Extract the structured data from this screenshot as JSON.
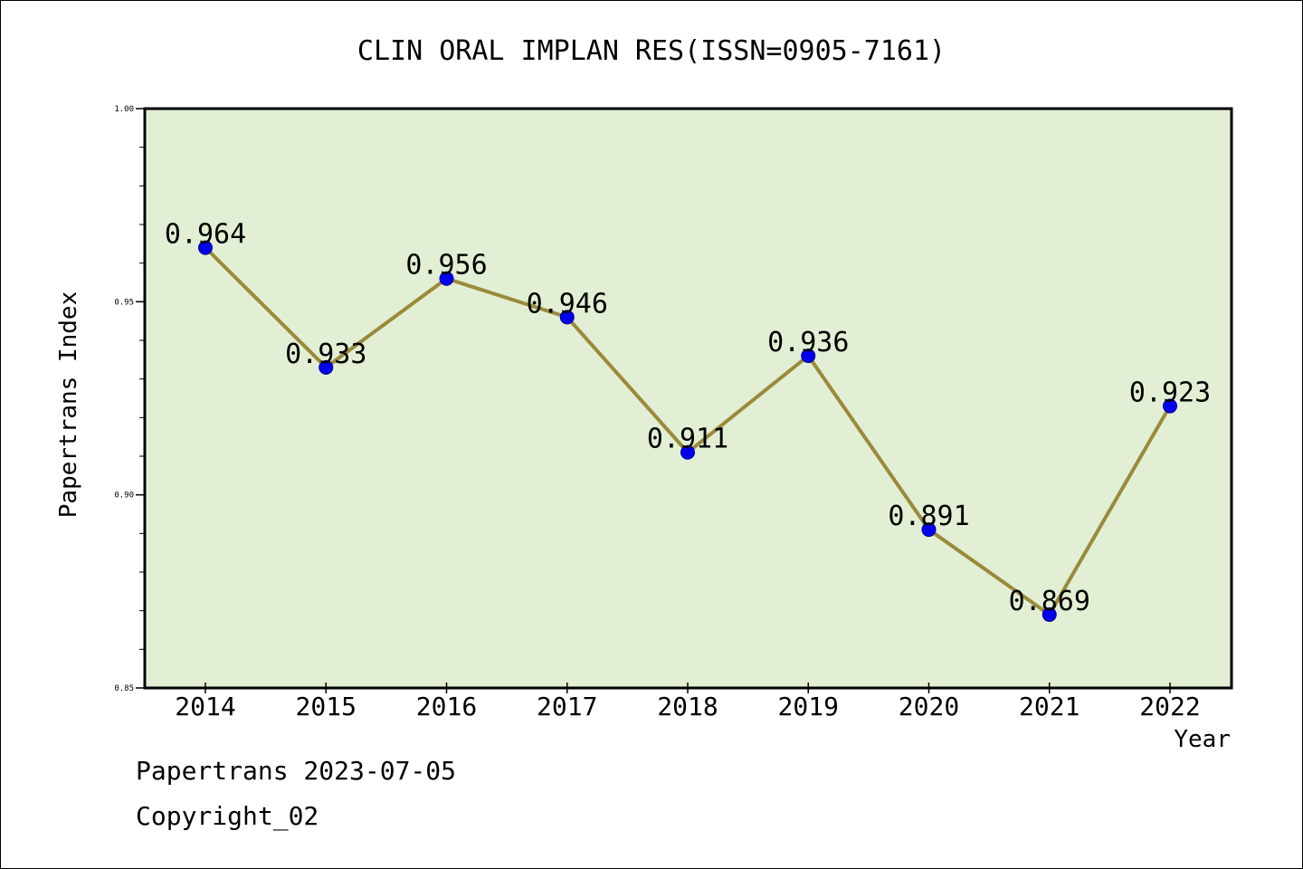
{
  "chart_data": {
    "type": "line",
    "title": "CLIN ORAL IMPLAN RES(ISSN=0905-7161)",
    "xlabel": "Year",
    "ylabel": "Papertrans Index",
    "categories": [
      "2014",
      "2015",
      "2016",
      "2017",
      "2018",
      "2019",
      "2020",
      "2021",
      "2022"
    ],
    "values": [
      0.964,
      0.933,
      0.956,
      0.946,
      0.911,
      0.936,
      0.891,
      0.869,
      0.923
    ],
    "data_labels": [
      "0.964",
      "0.933",
      "0.956",
      "0.946",
      "0.911",
      "0.936",
      "0.891",
      "0.869",
      "0.923"
    ],
    "ylim": [
      0.85,
      1.0
    ],
    "y_ticks": [
      0.85,
      0.9,
      0.95,
      1.0
    ],
    "y_tick_labels": [
      "0.85",
      "0.90",
      "0.95",
      "1.00"
    ],
    "y_minor_step": 0.01,
    "grid": false,
    "colors": {
      "plot_background": "#e2efd4",
      "line": "#9a8a3a",
      "marker": "#0000ee",
      "axes": "#000000"
    }
  },
  "footer": {
    "source": "Papertrans 2023-07-05",
    "copyright": "Copyright_02"
  }
}
